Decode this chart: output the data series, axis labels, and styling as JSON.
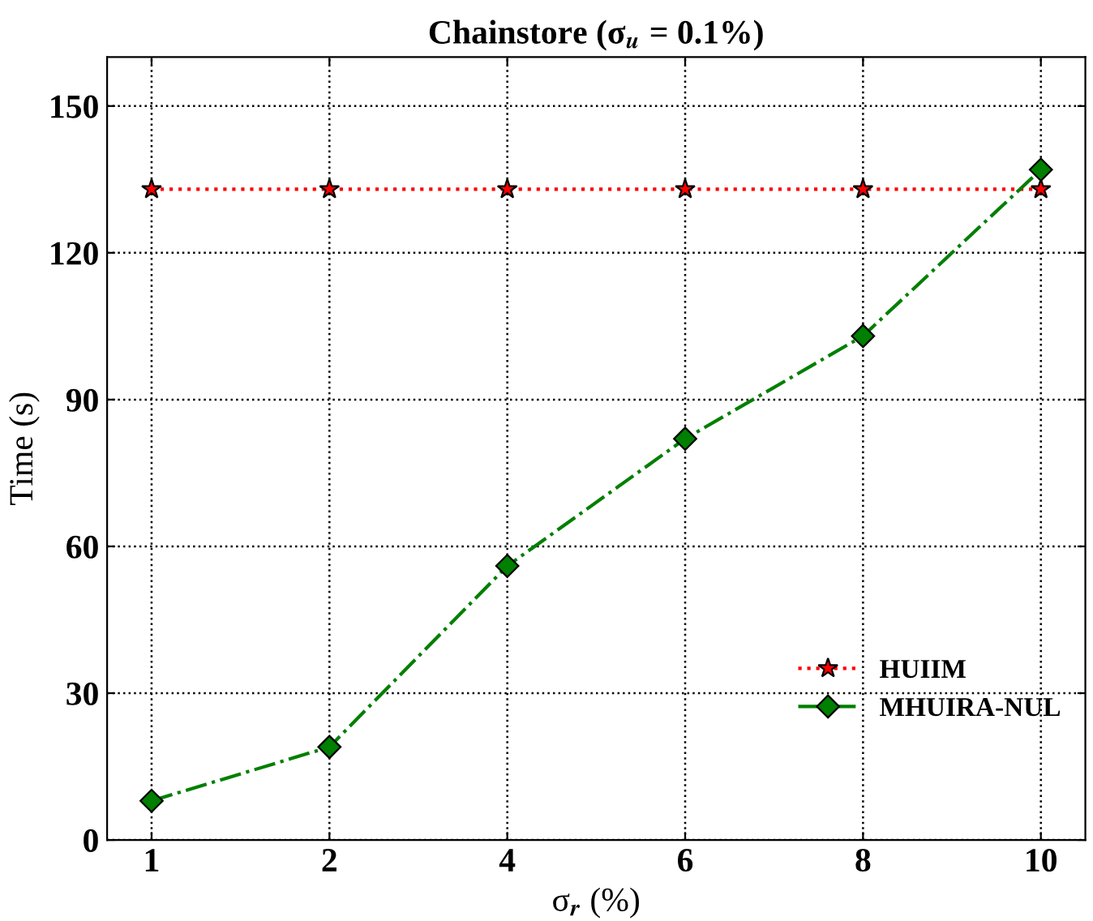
{
  "chart_data": {
    "type": "line",
    "title": "Chainstore (σ$_{u}$ = 0.1%)",
    "xlabel": "σ$_{r}$ (%)",
    "ylabel": "Time (s)",
    "categories": [
      "1",
      "2",
      "4",
      "6",
      "8",
      "10"
    ],
    "series": [
      {
        "name": "HUIIM",
        "color": "#ff0000",
        "marker": "star",
        "line_style": "dotted",
        "values": [
          133,
          133,
          133,
          133,
          133,
          133
        ]
      },
      {
        "name": "MHUIRA-NUL",
        "color": "#007f00",
        "marker": "diamond",
        "line_style": "dashdot",
        "values": [
          8,
          19,
          56,
          82,
          103,
          137
        ]
      }
    ],
    "ylim": [
      0,
      160
    ],
    "yticks": [
      0,
      30,
      60,
      90,
      120,
      150
    ],
    "grid": true,
    "legend": "lower right"
  }
}
